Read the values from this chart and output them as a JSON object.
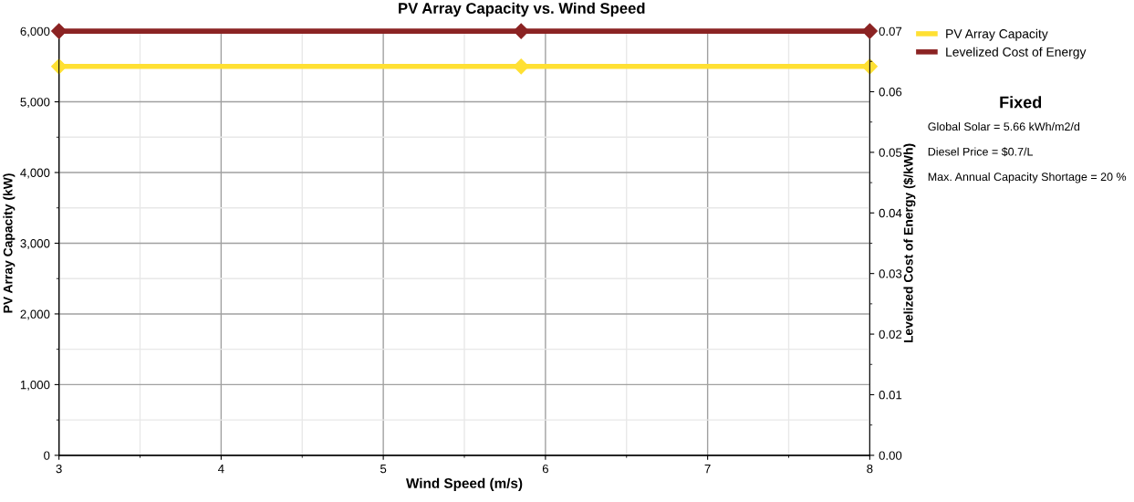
{
  "chart_data": {
    "type": "line",
    "title": "PV Array Capacity vs. Wind Speed",
    "xlabel": "Wind Speed (m/s)",
    "ylabel": "PV Array Capacity (kW)",
    "y2label": "Levelized Cost of Energy ($/kWh)",
    "x": [
      3,
      5.85,
      8
    ],
    "series": [
      {
        "name": "PV Array Capacity",
        "color": "#ffe033",
        "values": [
          5500,
          5500,
          5500
        ]
      },
      {
        "name": "Levelized Cost of Energy",
        "color": "#8b2323",
        "values": [
          0.07,
          0.07,
          0.07
        ],
        "axis": "y2"
      }
    ],
    "xlim": [
      3,
      8
    ],
    "xticks": [
      3,
      4,
      5,
      6,
      7,
      8
    ],
    "ylim": [
      0,
      6000
    ],
    "yticks": [
      {
        "value": 0,
        "label": "0"
      },
      {
        "value": 1000,
        "label": "1,000"
      },
      {
        "value": 2000,
        "label": "2,000"
      },
      {
        "value": 3000,
        "label": "3,000"
      },
      {
        "value": 4000,
        "label": "4,000"
      },
      {
        "value": 5000,
        "label": "5,000"
      },
      {
        "value": 6000,
        "label": "6,000"
      }
    ],
    "y2lim": [
      0,
      0.07
    ],
    "y2ticks": [
      {
        "value": 0,
        "label": "0.00"
      },
      {
        "value": 0.01,
        "label": "0.01"
      },
      {
        "value": 0.02,
        "label": "0.02"
      },
      {
        "value": 0.03,
        "label": "0.03"
      },
      {
        "value": 0.04,
        "label": "0.04"
      },
      {
        "value": 0.05,
        "label": "0.05"
      },
      {
        "value": 0.06,
        "label": "0.06"
      },
      {
        "value": 0.07,
        "label": "0.07"
      }
    ],
    "grid": true,
    "legend": "top right",
    "marker": "diamond",
    "line_style": "solid",
    "annotations": [
      "Fixed",
      "Global Solar = 5.66 kWh/m2/d",
      "Diesel Price = $0.7/L",
      "Max. Annual Capacity Shortage = 20 %"
    ]
  }
}
